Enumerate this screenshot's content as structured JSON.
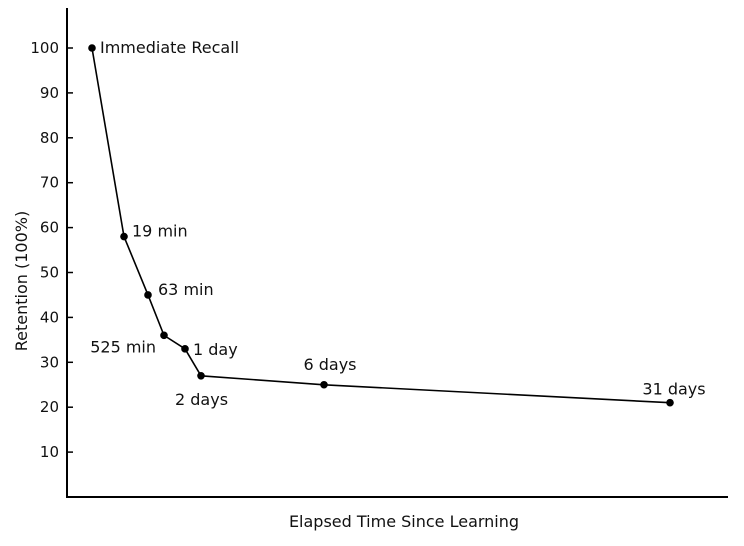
{
  "chart_data": {
    "type": "line",
    "title": "",
    "xlabel": "Elapsed Time Since Learning",
    "ylabel": "Retention (100%)",
    "ylim": [
      0,
      110
    ],
    "yticks": [
      10,
      20,
      30,
      40,
      50,
      60,
      70,
      80,
      90,
      100
    ],
    "x_tick_labels_shown": false,
    "grid": false,
    "legend": "none",
    "line_color": "#000000",
    "marker_color": "#000000",
    "series": [
      {
        "points": [
          {
            "label": "Immediate Recall",
            "x_minutes": 0,
            "y": 100
          },
          {
            "label": "19 min",
            "x_minutes": 19,
            "y": 58
          },
          {
            "label": "63 min",
            "x_minutes": 63,
            "y": 45
          },
          {
            "label": "525 min",
            "x_minutes": 525,
            "y": 36
          },
          {
            "label": "1 day",
            "x_minutes": 1440,
            "y": 33
          },
          {
            "label": "2 days",
            "x_minutes": 2880,
            "y": 27
          },
          {
            "label": "6 days",
            "x_minutes": 8640,
            "y": 25
          },
          {
            "label": "31 days",
            "x_minutes": 44640,
            "y": 21
          }
        ]
      }
    ]
  }
}
